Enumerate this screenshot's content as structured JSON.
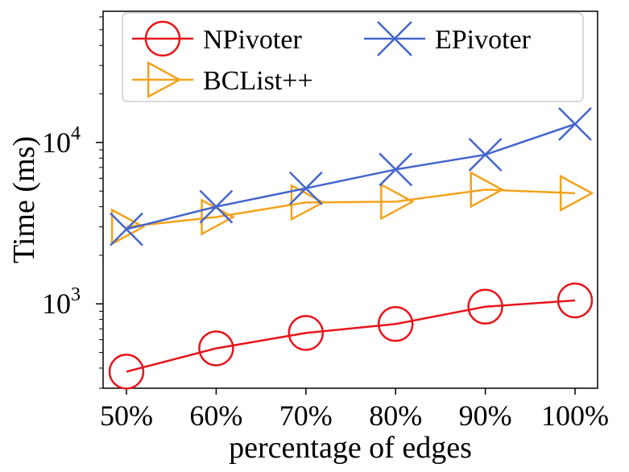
{
  "chart_data": {
    "type": "line",
    "title": "",
    "xlabel": "percentage of edges",
    "ylabel": "Time (ms)",
    "yscale": "log",
    "ylim": [
      300,
      65000
    ],
    "categories": [
      "50%",
      "60%",
      "70%",
      "80%",
      "90%",
      "100%"
    ],
    "y_ticks": [
      {
        "value": 1000,
        "base": "10",
        "exp": "3"
      },
      {
        "value": 10000,
        "base": "10",
        "exp": "4"
      }
    ],
    "legend_position": "top",
    "series": [
      {
        "name": "NPivoter",
        "marker": "circle",
        "color": "#e8141b",
        "values": [
          380,
          530,
          660,
          750,
          960,
          1050
        ]
      },
      {
        "name": "EPivoter",
        "marker": "x",
        "color": "#4466cc",
        "values": [
          2900,
          4000,
          5200,
          6800,
          8400,
          13000
        ]
      },
      {
        "name": "BCList++",
        "marker": "triangle-right",
        "color": "#f2a31c",
        "values": [
          3000,
          3450,
          4250,
          4300,
          5100,
          4850
        ]
      }
    ]
  }
}
